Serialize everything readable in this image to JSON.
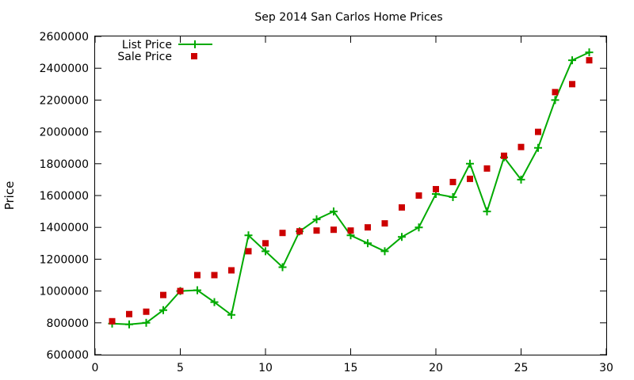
{
  "chart_data": {
    "type": "line",
    "title": "Sep 2014 San Carlos Home Prices",
    "xlabel": "",
    "ylabel": "Price",
    "xlim": [
      0,
      30
    ],
    "ylim": [
      600000,
      2600000
    ],
    "x_ticks": [
      0,
      5,
      10,
      15,
      20,
      25,
      30
    ],
    "x_tick_labels": [
      "0",
      "5",
      "10",
      "15",
      "20",
      "25",
      "30"
    ],
    "y_ticks": [
      600000,
      800000,
      1000000,
      1200000,
      1400000,
      1600000,
      1800000,
      2000000,
      2200000,
      2400000,
      2600000
    ],
    "y_tick_labels": [
      "600000",
      "800000",
      "1000000",
      "1200000",
      "1400000",
      "1600000",
      "1800000",
      "2000000",
      "2200000",
      "2400000",
      "2600000"
    ],
    "grid": false,
    "legend_position": "top-left",
    "x": [
      1,
      2,
      3,
      4,
      5,
      6,
      7,
      8,
      9,
      10,
      11,
      12,
      13,
      14,
      15,
      16,
      17,
      18,
      19,
      20,
      21,
      22,
      23,
      24,
      25,
      26,
      27,
      28,
      29
    ],
    "series": [
      {
        "name": "List Price",
        "style": "line-with-plus-markers",
        "color": "#00aa00",
        "values": [
          795000,
          790000,
          800000,
          880000,
          1000000,
          1005000,
          930000,
          850000,
          1350000,
          1250000,
          1150000,
          1375000,
          1450000,
          1500000,
          1350000,
          1300000,
          1250000,
          1340000,
          1400000,
          1610000,
          1590000,
          1800000,
          1500000,
          1840000,
          1700000,
          1900000,
          2200000,
          2450000,
          2500000
        ]
      },
      {
        "name": "Sale Price",
        "style": "square-markers",
        "color": "#cc0000",
        "values": [
          810000,
          855000,
          870000,
          975000,
          1000000,
          1100000,
          1100000,
          1130000,
          1250000,
          1300000,
          1365000,
          1375000,
          1380000,
          1385000,
          1380000,
          1400000,
          1425000,
          1525000,
          1600000,
          1640000,
          1685000,
          1705000,
          1770000,
          1850000,
          1905000,
          2000000,
          2250000,
          2300000,
          2450000
        ]
      }
    ]
  }
}
